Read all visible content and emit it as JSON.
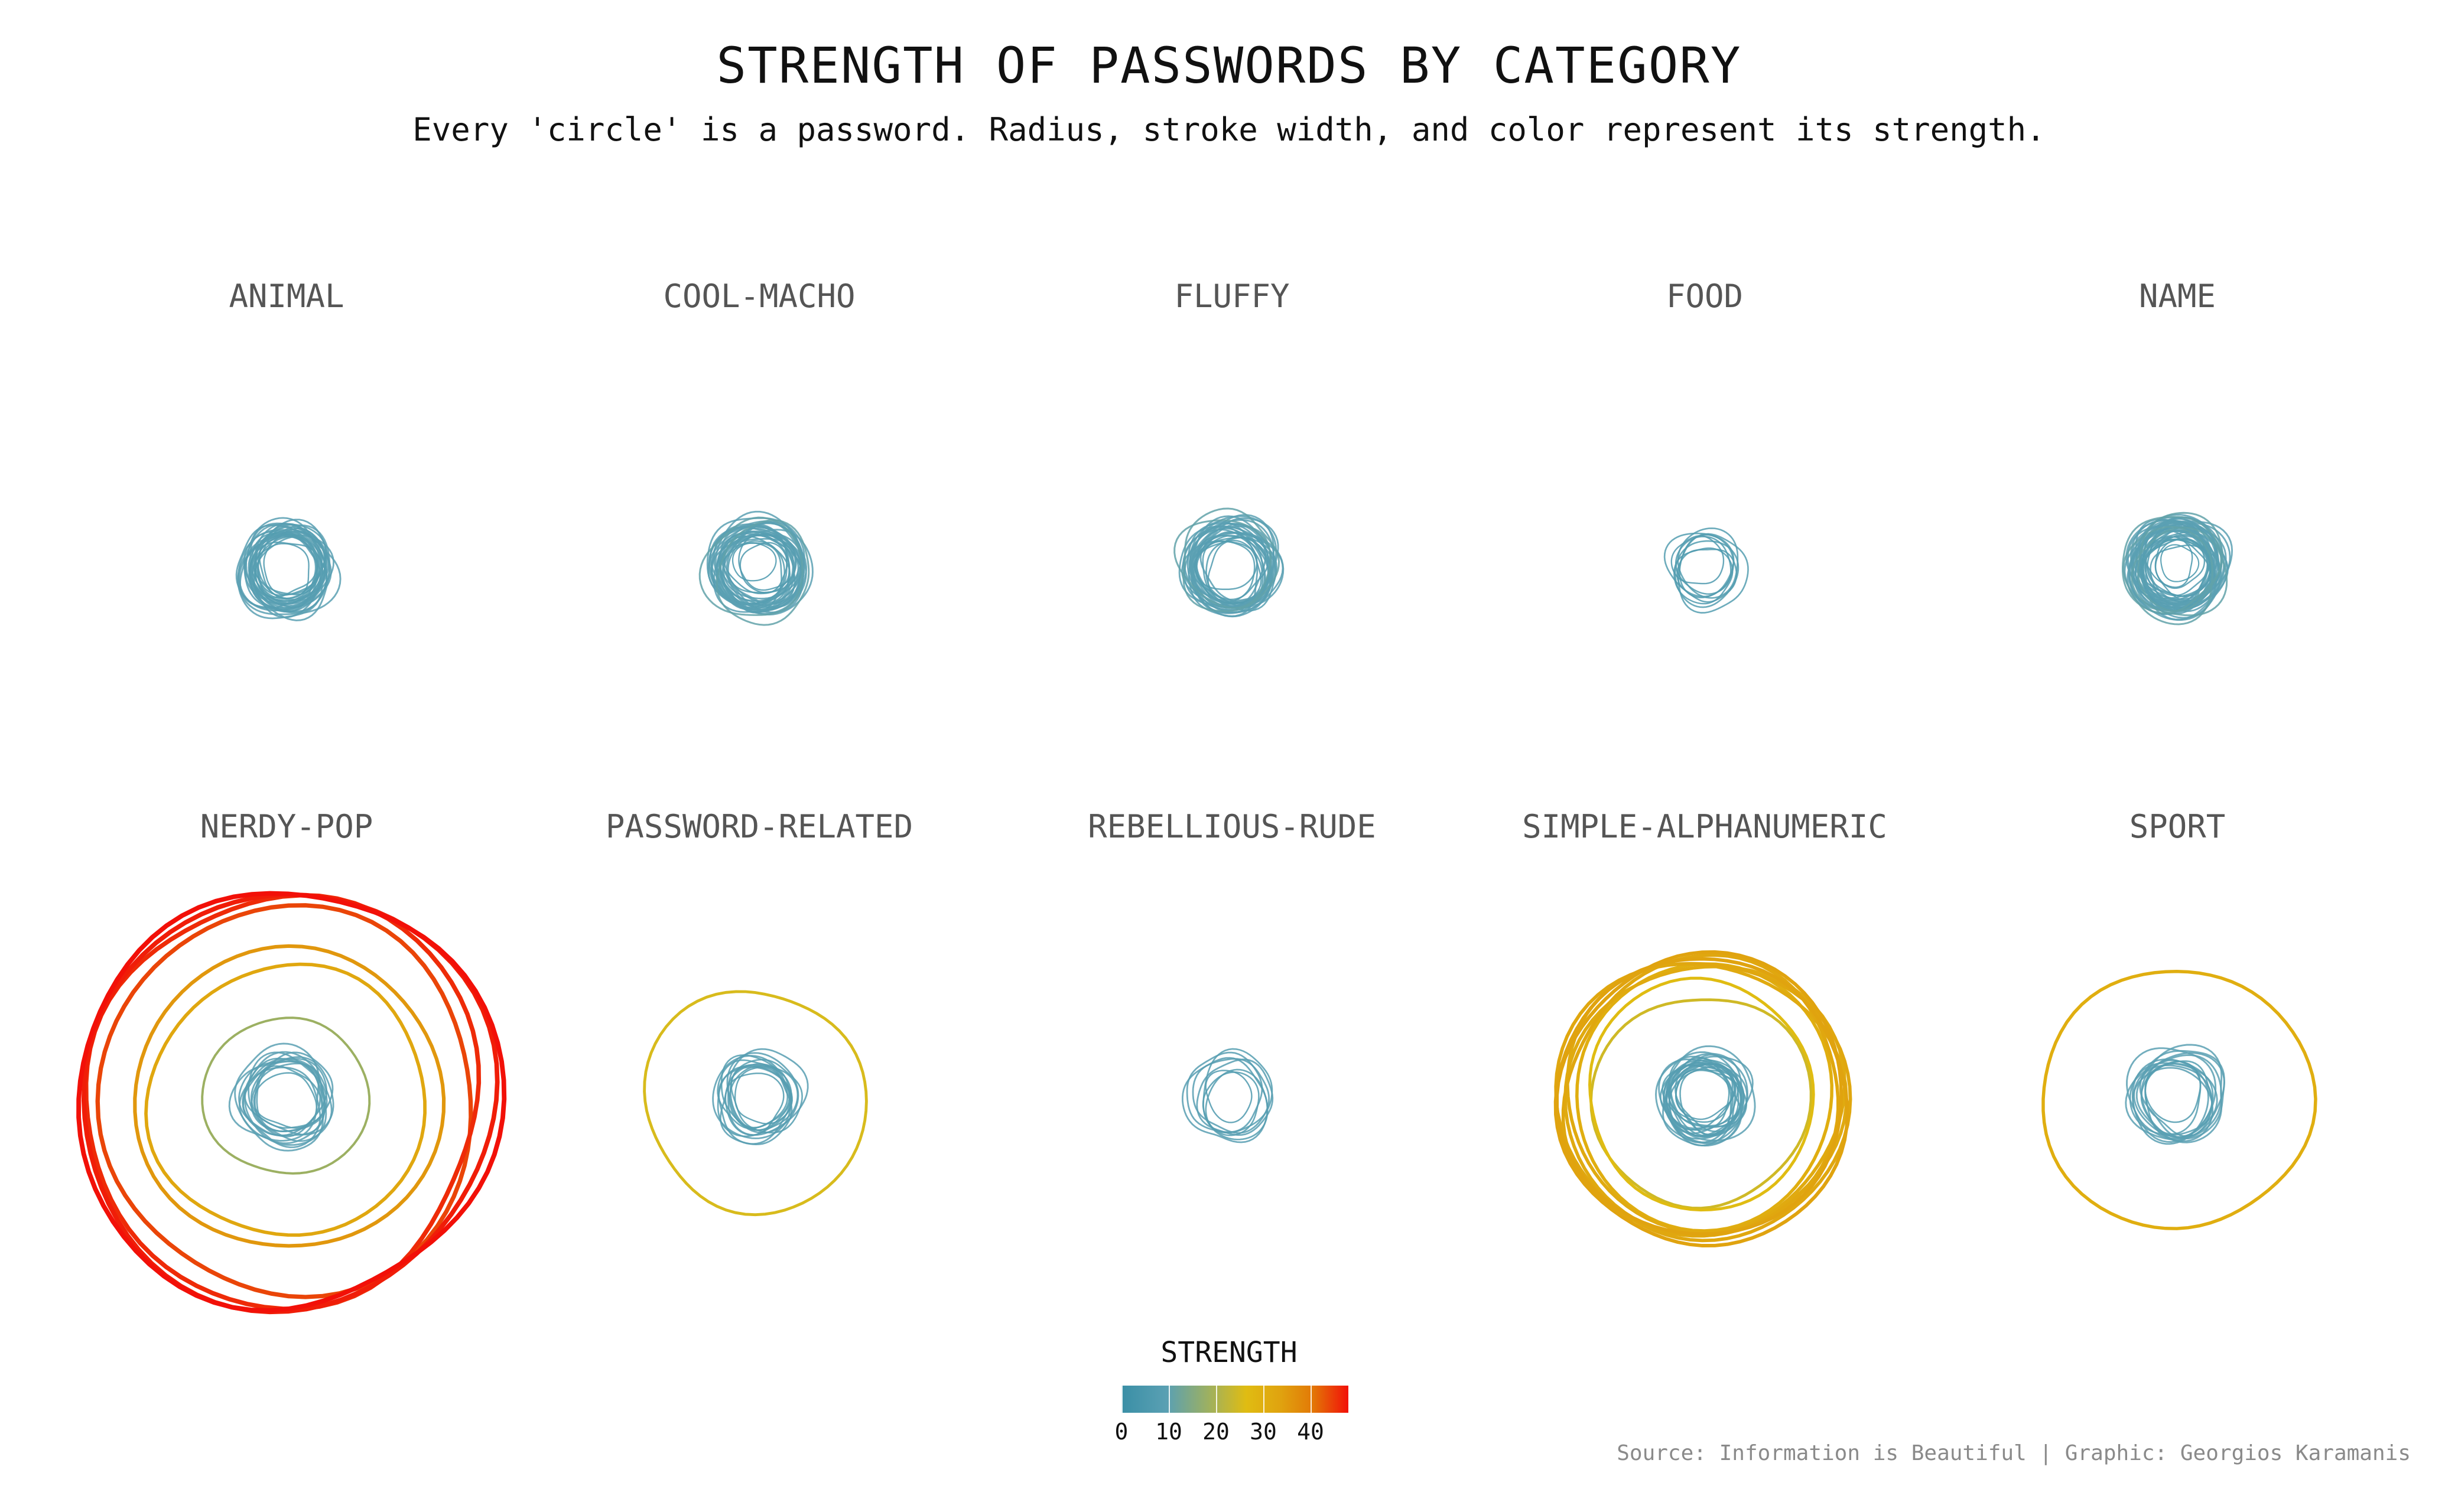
{
  "title": "STRENGTH OF PASSWORDS BY CATEGORY",
  "subtitle": "Every 'circle' is a password. Radius, stroke width, and color represent its strength.",
  "caption": "Source: Information is Beautiful | Graphic: Georgios Karamanis",
  "colors": {
    "low": "#3a8fa6",
    "mid": "#e0bc12",
    "high": "#f21008"
  },
  "chart_data": {
    "type": "scatter",
    "title": "STRENGTH OF PASSWORDS BY CATEGORY",
    "subtitle": "Every 'circle' is a password. Radius, stroke width, and color represent its strength.",
    "legend": {
      "title": "STRENGTH",
      "placement": "bottom-center",
      "ticks": [
        "0",
        "10",
        "20",
        "30",
        "40"
      ],
      "range": [
        0,
        48
      ]
    },
    "grid": false,
    "panels": [
      {
        "category": "ANIMAL",
        "strengths": [
          6,
          6,
          7,
          7,
          7,
          7,
          8,
          8,
          8,
          8,
          8,
          8,
          8,
          8,
          8,
          9,
          9,
          9,
          9,
          9,
          9,
          9,
          9,
          9,
          9,
          9,
          10,
          10,
          10
        ]
      },
      {
        "category": "COOL-MACHO",
        "strengths": [
          5,
          6,
          6,
          7,
          7,
          7,
          8,
          8,
          8,
          8,
          8,
          9,
          9,
          9,
          9,
          9,
          9,
          9,
          9,
          9,
          9,
          10,
          10,
          10,
          10,
          10,
          10,
          10,
          10,
          10,
          11,
          11
        ]
      },
      {
        "category": "FLUFFY",
        "strengths": [
          6,
          7,
          7,
          7,
          8,
          8,
          8,
          8,
          8,
          9,
          9,
          9,
          9,
          9,
          9,
          9,
          9,
          9,
          10,
          10,
          10,
          10,
          10,
          10,
          10,
          10,
          11,
          11
        ]
      },
      {
        "category": "FOOD",
        "strengths": [
          6,
          6,
          7,
          7,
          7,
          8,
          8,
          8,
          8
        ]
      },
      {
        "category": "NAME",
        "strengths": [
          4,
          5,
          6,
          6,
          7,
          7,
          7,
          7,
          8,
          8,
          8,
          8,
          8,
          8,
          8,
          9,
          9,
          9,
          9,
          9,
          9,
          9,
          9,
          9,
          9,
          9,
          9,
          10,
          10,
          10,
          10,
          10,
          10,
          10,
          10,
          10,
          10,
          10,
          10,
          10,
          11,
          11,
          11,
          11
        ]
      },
      {
        "category": "NERDY-POP",
        "strengths": [
          7,
          8,
          8,
          9,
          9,
          9,
          9,
          9,
          9,
          9,
          10,
          10,
          10,
          10,
          18,
          32,
          35,
          44,
          46,
          47,
          48
        ]
      },
      {
        "category": "PASSWORD-RELATED",
        "strengths": [
          6,
          7,
          7,
          8,
          8,
          8,
          8,
          8,
          9,
          9,
          9,
          9,
          9,
          25
        ]
      },
      {
        "category": "REBELLIOUS-RUDE",
        "strengths": [
          6,
          7,
          8,
          8,
          9,
          9,
          9,
          9
        ]
      },
      {
        "category": "SIMPLE-ALPHANUMERIC",
        "strengths": [
          6,
          7,
          7,
          7,
          8,
          8,
          8,
          8,
          8,
          8,
          8,
          9,
          9,
          9,
          9,
          9,
          9,
          9,
          9,
          9,
          10,
          10,
          24,
          26,
          30,
          31,
          31,
          32,
          32,
          33,
          33
        ]
      },
      {
        "category": "SPORT",
        "strengths": [
          7,
          8,
          8,
          8,
          9,
          9,
          9,
          9,
          9,
          10,
          10,
          10,
          10,
          30
        ]
      }
    ]
  }
}
